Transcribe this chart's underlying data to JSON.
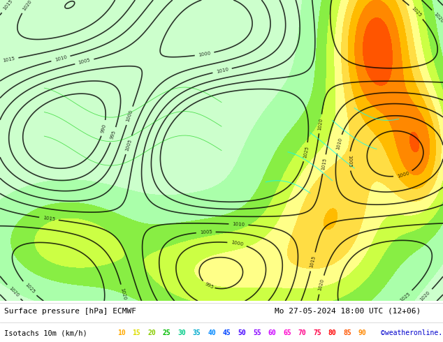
{
  "title_line1": "Surface pressure [hPa] ECMWF",
  "title_line2": "Mo 27-05-2024 18:00 UTC (12+06)",
  "legend_label": "Isotachs 10m (km/h)",
  "copyright": "©weatheronline.co.uk",
  "isotach_values": [
    10,
    15,
    20,
    25,
    30,
    35,
    40,
    45,
    50,
    55,
    60,
    65,
    70,
    75,
    80,
    85,
    90
  ],
  "isotach_colors": [
    "#ffaa00",
    "#ffdd00",
    "#aaff00",
    "#00ff00",
    "#00ffaa",
    "#00ffff",
    "#00aaff",
    "#0055ff",
    "#0000ff",
    "#5500ff",
    "#aa00ff",
    "#ff00ff",
    "#ff00aa",
    "#ff0055",
    "#ff0000",
    "#ff5500",
    "#ffaa00"
  ],
  "bg_color": "#aaffaa",
  "map_bg": "#ccffcc",
  "bottom_bar_color": "#ffffff",
  "bottom_text_color": "#000000",
  "figsize": [
    6.34,
    4.9
  ],
  "dpi": 100
}
